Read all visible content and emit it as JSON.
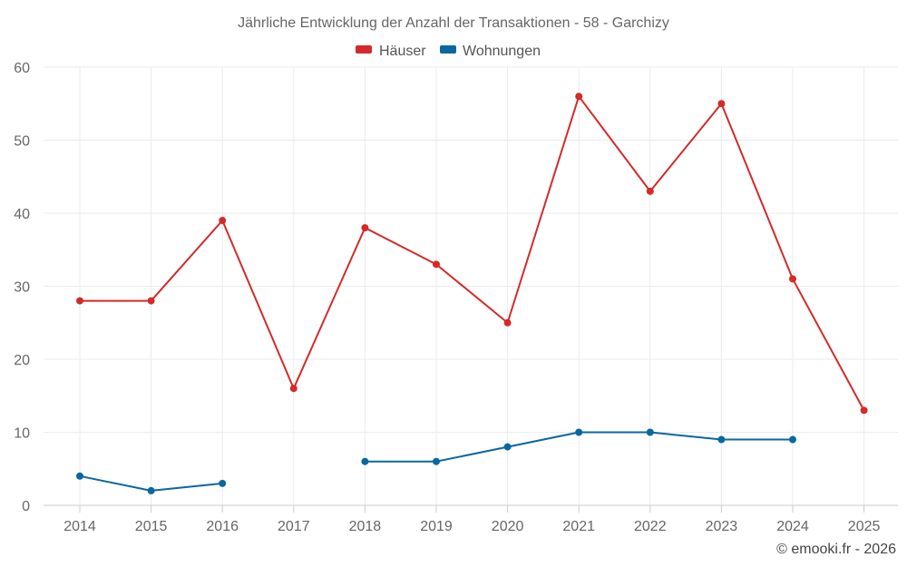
{
  "chart_data": {
    "type": "line",
    "title": "Jährliche Entwicklung der Anzahl der Transaktionen - 58 - Garchizy",
    "categories": [
      "2014",
      "2015",
      "2016",
      "2017",
      "2018",
      "2019",
      "2020",
      "2021",
      "2022",
      "2023",
      "2024",
      "2025"
    ],
    "series": [
      {
        "name": "Häuser",
        "color": "#d42a2a",
        "values": [
          28,
          28,
          39,
          16,
          38,
          33,
          25,
          56,
          43,
          55,
          31,
          13
        ]
      },
      {
        "name": "Wohnungen",
        "color": "#0868a0",
        "values": [
          4,
          2,
          3,
          null,
          6,
          6,
          8,
          10,
          10,
          9,
          9,
          null
        ]
      }
    ],
    "ylim": [
      0,
      60
    ],
    "yticks": [
      0,
      10,
      20,
      30,
      40,
      50,
      60
    ],
    "xlabel": "",
    "ylabel": "",
    "grid": true,
    "legend_position": "top-center"
  },
  "credit": "© emooki.fr - 2026"
}
